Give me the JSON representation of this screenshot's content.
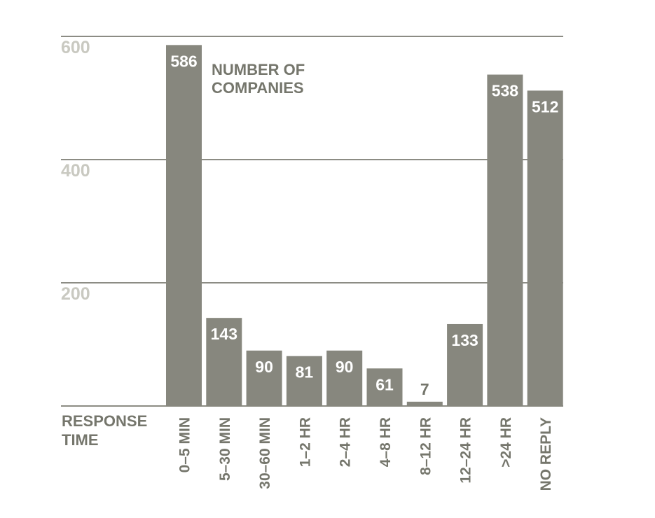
{
  "chart_data": {
    "type": "bar",
    "title": "NUMBER OF COMPANIES",
    "xlabel": "RESPONSE TIME",
    "ylabel": "",
    "categories": [
      "0–5 MIN",
      "5–30 MIN",
      "30–60 MIN",
      "1–2 HR",
      "2–4 HR",
      "4–8 HR",
      "8–12 HR",
      "12–24 HR",
      ">24 HR",
      "NO REPLY"
    ],
    "values": [
      586,
      143,
      90,
      81,
      90,
      61,
      7,
      133,
      538,
      512
    ],
    "ylim": [
      0,
      600
    ],
    "yticks": [
      600,
      400,
      200
    ],
    "grid": true,
    "legend": "none"
  },
  "colors": {
    "bar": "#87877e",
    "gridline": "#8c8c84",
    "baseline": "#8c8c84",
    "tick_label": "#c9c9c1",
    "text": "#75766c",
    "value_inside": "#ffffff",
    "value_outside": "#75766c"
  }
}
